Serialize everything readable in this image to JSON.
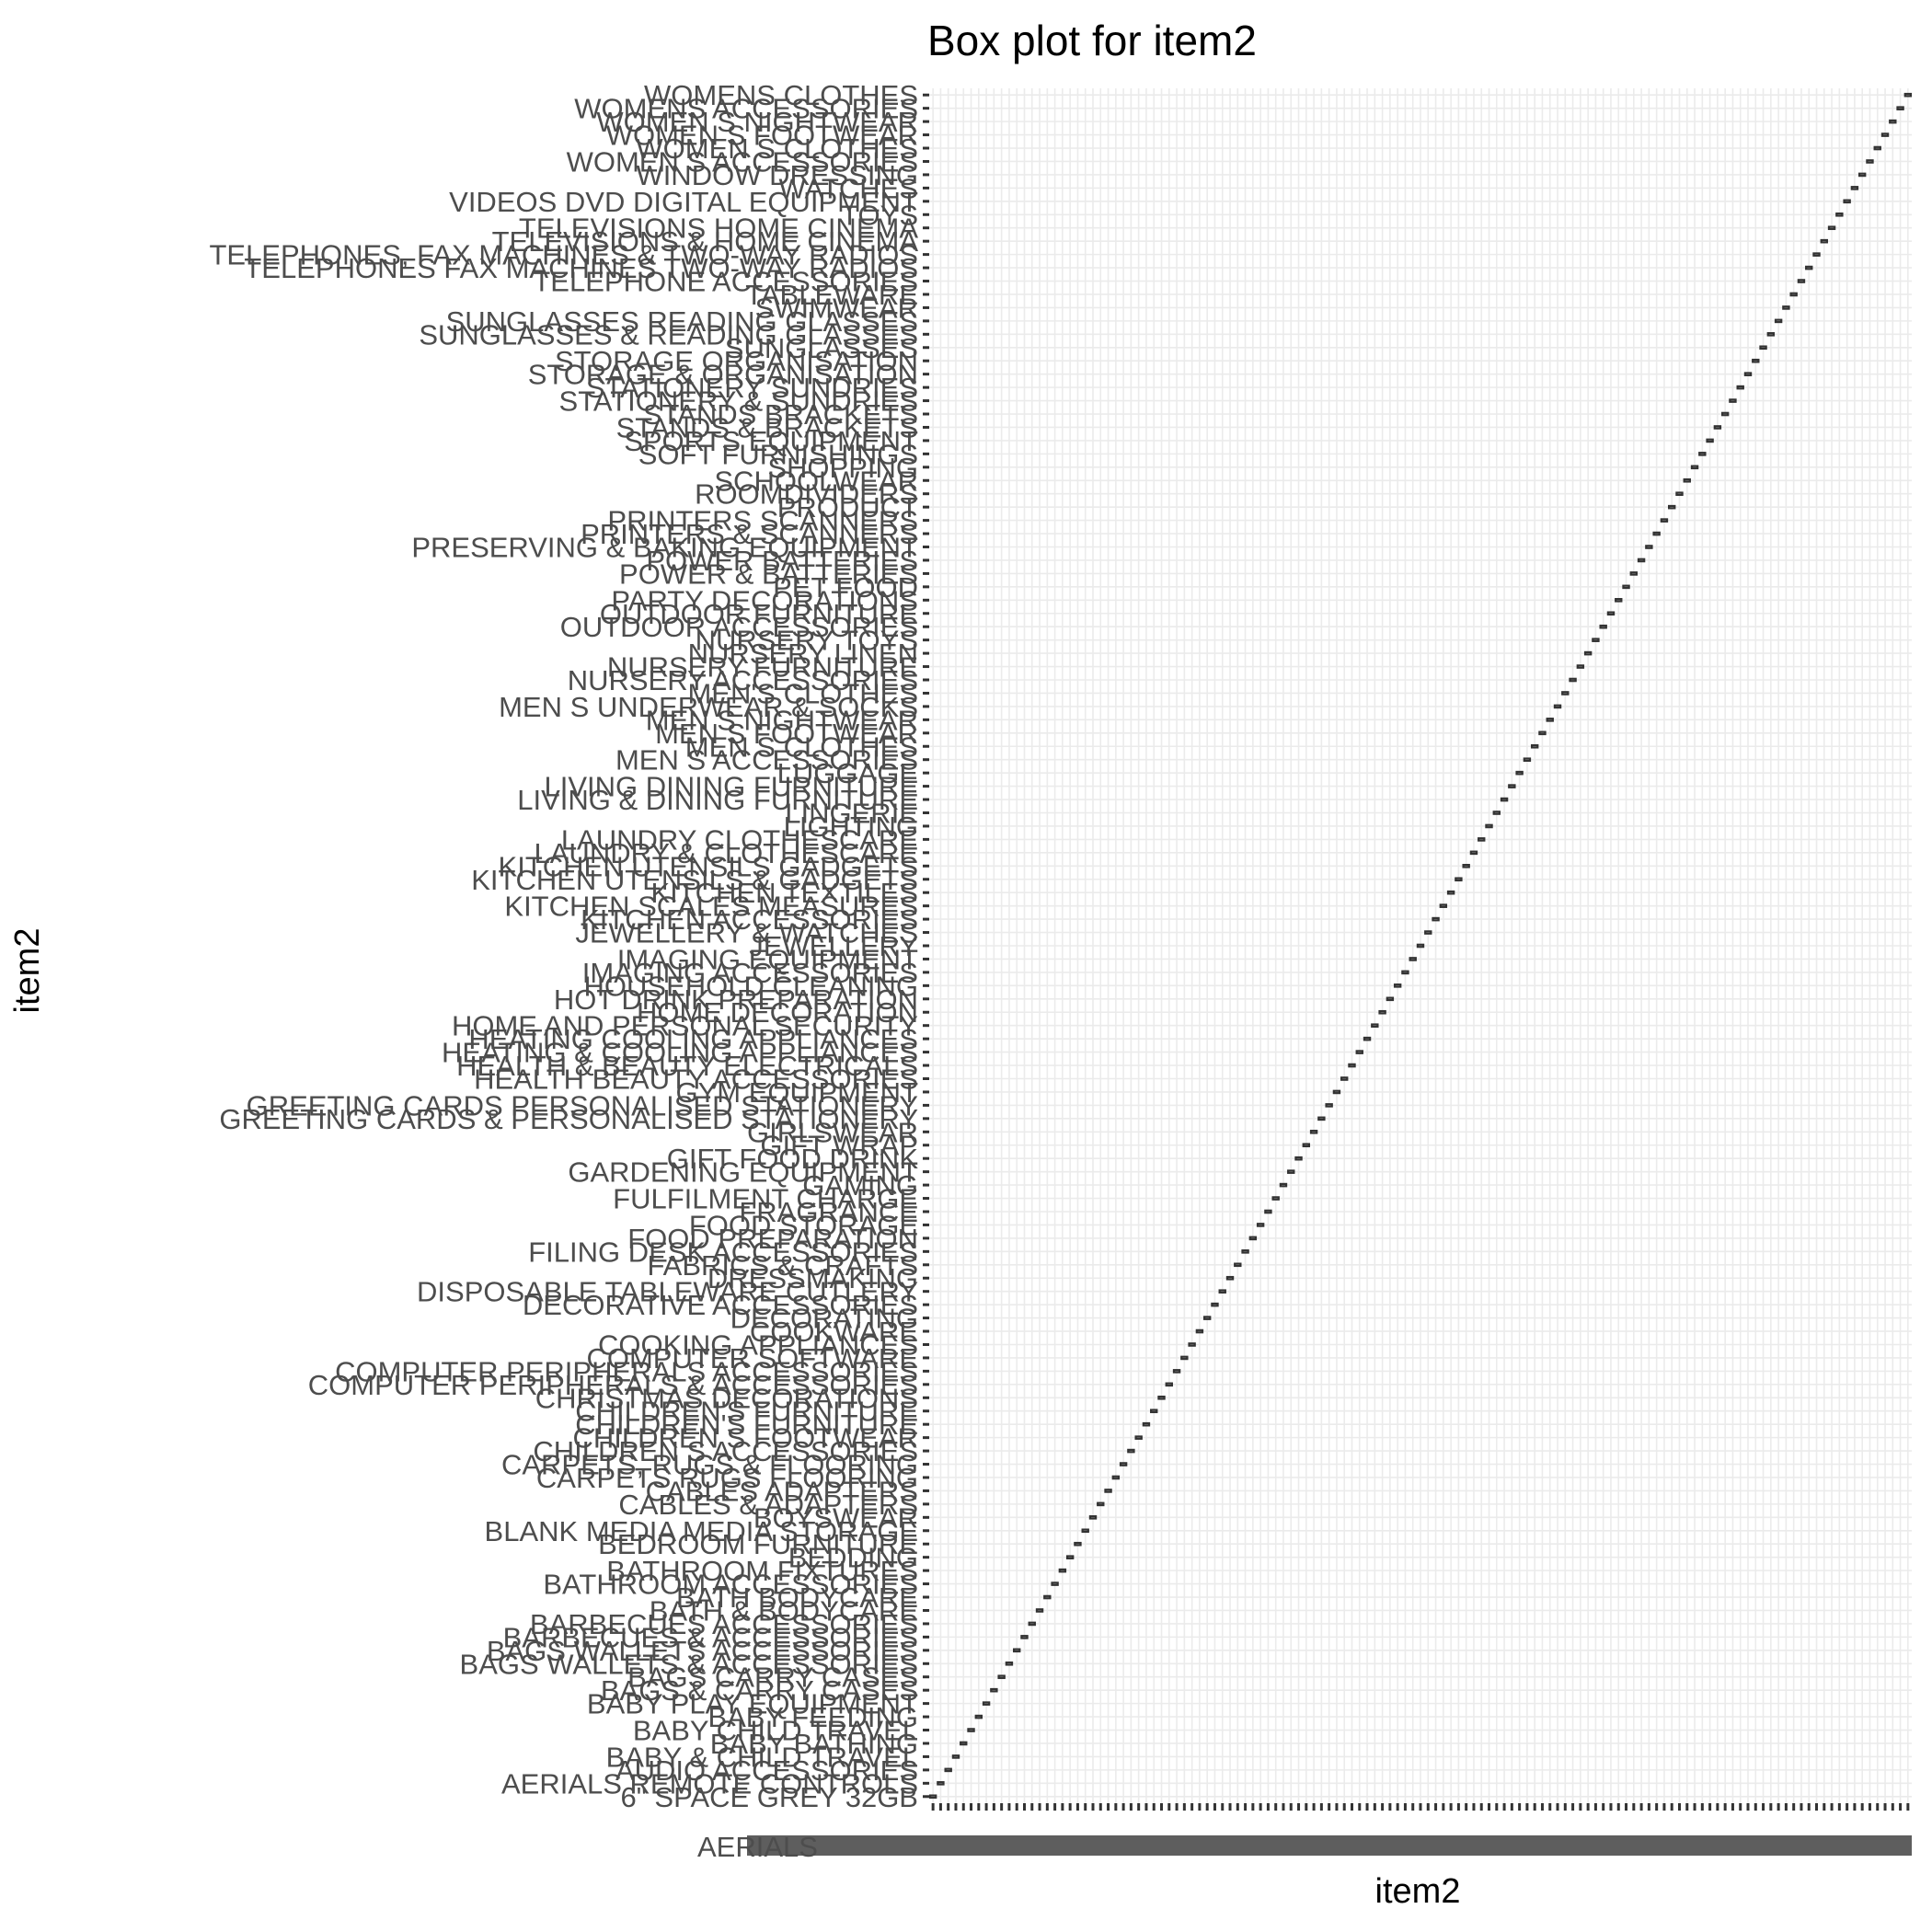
{
  "chart_data": {
    "type": "box",
    "title": "Box plot for item2",
    "xlabel": "item2",
    "ylabel": "item2",
    "grid": true,
    "legend": "none",
    "x_tick_labels_visible": [
      "AERIALS"
    ],
    "categories": [
      "6\" SPACE GREY 32GB",
      "AERIALS REMOTE CONTROLS",
      "AUDIO ACCESSORIES",
      "BABY & CHILD TRAVEL",
      "BABY BATHING",
      "BABY CHILD TRAVEL",
      "BABY FEEDING",
      "BABY PLAY EQUIPMENT",
      "BAGS & CARRY CASES",
      "BAGS CARRY CASES",
      "BAGS WALLETS & ACCESSORIES",
      "BAGS WALLETS ACCESSORIES",
      "BARBECUES & ACCESSORIES",
      "BARBECUES ACCESSORIES",
      "BATH & BODYCARE",
      "BATH BODYCARE",
      "BATHROOM ACCESSORIES",
      "BATHROOM FIXTURES",
      "BEDDING",
      "BEDROOM FURNITURE",
      "BLANK MEDIA MEDIA STORAGE",
      "BOYSWEAR",
      "CABLES & ADAPTERS",
      "CABLES ADAPTERS",
      "CARPETS RUGS FLOORING",
      "CARPETS, RUGS & FLOORING",
      "CHILDREN S ACCESSORIES",
      "CHILDREN S FOOTWEAR",
      "CHILDREN'S FURNITURE",
      "CHILDREN'S FURNITURE",
      "CHRISTMAS DECORATIONS",
      "COMPUTER PERIPHERALS & ACCESSORIES",
      "COMPUTER PERIPHERALS ACCESSORIES",
      "COMPUTER SOFTWARE",
      "COOKING APPLIANCES",
      "COOKWARE",
      "DECORATING",
      "DECORATIVE ACCESSORIES",
      "DISPOSABLE TABLEWARE CUTLERY",
      "DRESSMAKING",
      "FABRICS & CRAFTS",
      "FILING DESK ACCESSORIES",
      "FOOD PREPARATION",
      "FOOD STORAGE",
      "FRAGRANCE",
      "FULFILMENT CHARGE",
      "GAMING",
      "GARDENING EQUIPMENT",
      "GIFT FOOD DRINK",
      "GIFT WRAP",
      "GIRLSWEAR",
      "GREETING CARDS & PERSONALISED STATIONERY",
      "GREETING CARDS PERSONALISED STATIONERY",
      "GYM EQUIPMENT",
      "HEALTH BEAUTY ACCESSORIES",
      "HEALTH & BEAUTY ELECTRICALS",
      "HEATING & COOLING APPLIANCES",
      "HEATING COOLING APPLIANCES",
      "HOME AND PERSONAL SECURITY",
      "HOME DECORATION",
      "HOT DRINK PREPARATION",
      "HOUSEHOLD CLEANING",
      "IMAGING ACCESSORIES",
      "IMAGING EQUIPMENT",
      "JEWELLERY",
      "JEWELLERY & WATCHES",
      "KITCHEN ACCESSORIES",
      "KITCHEN SCALES MEASURES",
      "KITCHEN TEXTILES",
      "KITCHEN UTENSILS & GADGETS",
      "KITCHEN UTENSILS GADGETS",
      "LAUNDRY & CLOTHESCARE",
      "LAUNDRY CLOTHESCARE",
      "LIGHTING",
      "LINGERIE",
      "LIVING & DINING FURNITURE",
      "LIVING DINING FURNITURE",
      "LUGGAGE",
      "MEN S ACCESSORIES",
      "MEN S CLOTHES",
      "MEN S FOOTWEAR",
      "MEN S NIGHTWEAR",
      "MEN S UNDERWEAR & SOCKS",
      "MEN'S CLOTHES",
      "NURSERY ACCESSORIES",
      "NURSERY FURNITURE",
      "NURSERY LINEN",
      "NURSERY TOYS",
      "OUTDOOR ACCESSORIES",
      "OUTDOOR FURNITURE",
      "PARTY DECORATIONS",
      "PET FOOD",
      "POWER & BATTERIES",
      "POWER BATTERIES",
      "PRESERVING & BAKING EQUIPMENT",
      "PRINTERS & SCANNERS",
      "PRINTERS SCANNERS",
      "PRODUCT",
      "ROOMDIVIDERS",
      "SCHOOLWEAR",
      "SHOPPING",
      "SOFT FURNISHINGS",
      "SPORTS EQUIPMENT",
      "STANDS & BRACKETS",
      "STANDS BRACKETS",
      "STATIONERY & SUNDRIES",
      "STATIONERY SUNDRIES",
      "STORAGE & ORGANISATION",
      "STORAGE ORGANISATION",
      "SUNGLASSES",
      "SUNGLASSES & READING GLASSES",
      "SUNGLASSES READING GLASSES",
      "SWIMWEAR",
      "TABLEWARE",
      "TELEPHONE ACCESSORIES",
      "TELEPHONES FAX MACHINES TWO-WAY RADIOS",
      "TELEPHONES, FAX MACHINES & TWO-WAY RADIOS",
      "TELEVISIONS & HOME CINEMA",
      "TELEVISIONS HOME CINEMA",
      "TOYS",
      "VIDEOS DVD DIGITAL EQUIPMENT",
      "WATCHES",
      "WINDOW DRESSING",
      "WOMEN S ACCESSORIES",
      "WOMEN S CLOTHES",
      "WOMEN S FOOTWEAR",
      "WOMEN S NIGHTWEAR",
      "WOMENS ACCESSORIES",
      "WOMENS CLOTHES"
    ]
  }
}
